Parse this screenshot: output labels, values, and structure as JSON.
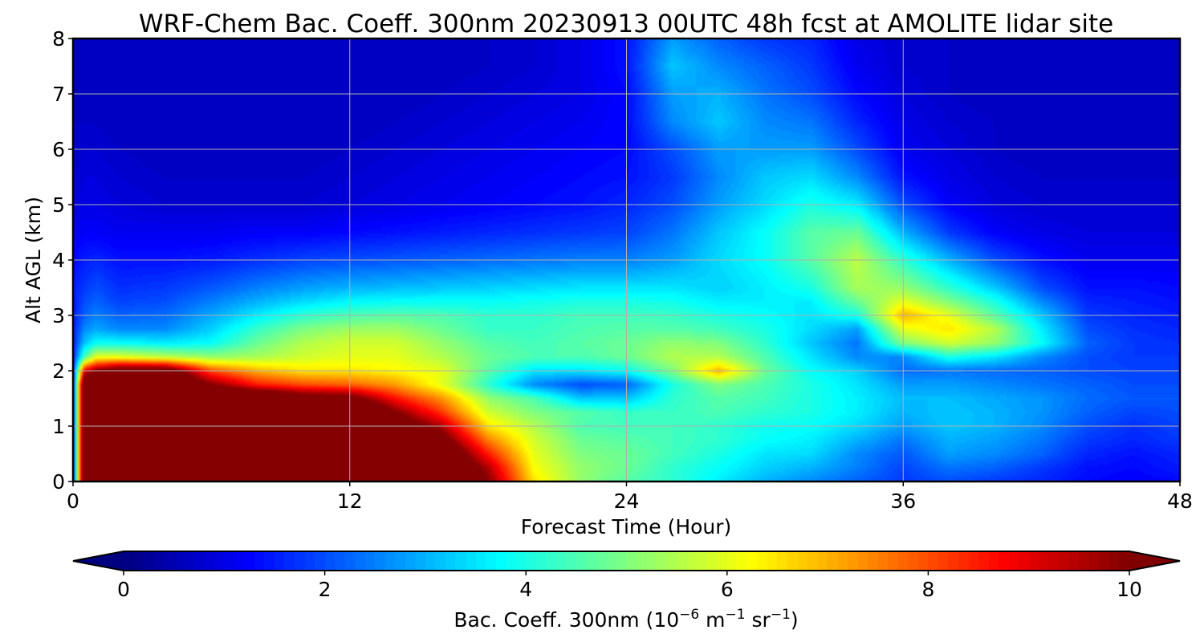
{
  "chart_data": {
    "type": "heatmap",
    "title": "WRF-Chem Bac. Coeff. 300nm  20230913 00UTC 48h fcst at AMOLITE lidar site",
    "xlabel": "Forecast Time (Hour)",
    "ylabel": "Alt AGL (km)",
    "xlim": [
      0,
      48
    ],
    "ylim": [
      0,
      8
    ],
    "xticks": [
      0,
      12,
      24,
      36,
      48
    ],
    "yticks": [
      0,
      1,
      2,
      3,
      4,
      5,
      6,
      7,
      8
    ],
    "grid": true,
    "colormap": "jet",
    "colorbar": {
      "label_main": "Bac. Coeff. 300nm  (10",
      "label_exp1": "−6",
      "label_mid": " m",
      "label_exp2": "−1",
      "label_mid2": " sr",
      "label_exp3": "−1",
      "label_end": ")",
      "range": [
        0,
        10
      ],
      "ticks": [
        0,
        2,
        4,
        6,
        8,
        10
      ],
      "extend": "both",
      "orientation": "horizontal",
      "placement": "bottom"
    },
    "x": [
      0,
      0.5,
      1,
      2,
      4,
      6,
      8,
      10,
      12,
      14,
      16,
      18,
      20,
      22,
      24,
      26,
      28,
      30,
      32,
      34,
      36,
      38,
      40,
      42,
      44,
      46,
      48
    ],
    "y": [
      0,
      0.25,
      0.5,
      0.75,
      1,
      1.25,
      1.5,
      1.75,
      2,
      2.25,
      2.5,
      2.75,
      3,
      3.25,
      3.5,
      4,
      4.5,
      5,
      5.5,
      6,
      6.5,
      7,
      7.5,
      8
    ],
    "z": [
      [
        1.5,
        12,
        12,
        12,
        12,
        12,
        12,
        12,
        12,
        12,
        12,
        10,
        6.5,
        5.2,
        4.6,
        4.2,
        3.6,
        3.0,
        2.6,
        2.2,
        1.8,
        2.0,
        1.8,
        1.6,
        1.3,
        1.2,
        1.3
      ],
      [
        1.5,
        12,
        12,
        12,
        12,
        12,
        12,
        12,
        12,
        12,
        12,
        9.5,
        6.2,
        5.2,
        4.8,
        4.2,
        3.8,
        3.3,
        3.0,
        2.5,
        1.9,
        2.4,
        2.2,
        1.8,
        1.4,
        1.3,
        1.5
      ],
      [
        1.5,
        12,
        12,
        12,
        12,
        12,
        12,
        12,
        12,
        12,
        11.5,
        8.5,
        6.0,
        5.0,
        4.8,
        4.4,
        4.0,
        3.5,
        3.4,
        2.6,
        2.1,
        2.8,
        2.6,
        2.2,
        1.6,
        1.4,
        1.6
      ],
      [
        1.5,
        12,
        12,
        12,
        12,
        12,
        12,
        12,
        12,
        12,
        10.5,
        7.5,
        5.8,
        4.8,
        4.6,
        4.4,
        4.2,
        3.8,
        3.6,
        3.0,
        2.4,
        3.0,
        2.8,
        2.4,
        1.8,
        1.6,
        1.8
      ],
      [
        1.5,
        12,
        12,
        12,
        12,
        12,
        12,
        12,
        12,
        11,
        9.5,
        6.5,
        5.5,
        4.5,
        4.4,
        4.4,
        4.2,
        3.9,
        3.8,
        3.4,
        2.8,
        3.2,
        3.0,
        2.6,
        2.0,
        1.7,
        1.9
      ],
      [
        1.5,
        12,
        12,
        12,
        12,
        12,
        12,
        12,
        12,
        10,
        8.2,
        5.8,
        5.0,
        4.6,
        4.3,
        4.3,
        4.5,
        4.2,
        4.0,
        3.6,
        3.0,
        3.2,
        3.0,
        2.7,
        2.2,
        1.9,
        2.0
      ],
      [
        1.5,
        12,
        12,
        12,
        12,
        12,
        12,
        10.8,
        10.5,
        8.6,
        7.3,
        5.2,
        4.5,
        3.2,
        3.2,
        4.2,
        4.6,
        4.4,
        4.0,
        3.6,
        3.1,
        3.1,
        2.9,
        2.7,
        2.3,
        2.1,
        2.1
      ],
      [
        1.5,
        12,
        12,
        12,
        12,
        10,
        8.5,
        8.0,
        7.8,
        7.2,
        6.0,
        4.2,
        2.6,
        2.0,
        2.2,
        4.0,
        5.0,
        4.5,
        4.0,
        3.5,
        2.8,
        2.8,
        2.6,
        2.4,
        2.2,
        2.0,
        2.0
      ],
      [
        1.5,
        9,
        10,
        11,
        11,
        8.0,
        7.0,
        6.5,
        6.5,
        6.3,
        6.0,
        4.6,
        3.5,
        3.5,
        3.8,
        5.0,
        7.0,
        4.8,
        3.8,
        3.3,
        2.3,
        2.4,
        2.3,
        2.2,
        2.0,
        1.9,
        1.9
      ],
      [
        1.5,
        4.5,
        6,
        6.0,
        5.6,
        5.2,
        5.4,
        5.8,
        6.0,
        6.0,
        5.5,
        4.8,
        4.5,
        4.5,
        4.8,
        5.5,
        5.5,
        4.5,
        3.5,
        2.6,
        2.6,
        4.0,
        3.5,
        2.6,
        2.0,
        1.8,
        1.8
      ],
      [
        1.5,
        3.2,
        3.8,
        3.8,
        3.6,
        3.8,
        4.8,
        5.5,
        5.8,
        5.8,
        5.2,
        4.6,
        4.4,
        4.6,
        4.8,
        5.2,
        5.0,
        4.2,
        3.2,
        2.4,
        5.0,
        5.8,
        5.2,
        3.8,
        2.2,
        1.8,
        1.7
      ],
      [
        1.5,
        2.6,
        2.9,
        2.6,
        2.6,
        3.3,
        4.3,
        5.0,
        5.3,
        5.3,
        4.8,
        4.3,
        4.3,
        4.5,
        4.6,
        4.6,
        4.4,
        4.0,
        3.4,
        2.8,
        6.0,
        6.5,
        5.5,
        3.6,
        2.0,
        1.7,
        1.6
      ],
      [
        1.5,
        2.2,
        2.5,
        2.2,
        2.3,
        2.9,
        3.6,
        4.2,
        4.5,
        4.6,
        4.5,
        4.2,
        4.2,
        4.4,
        4.4,
        4.3,
        4.0,
        3.8,
        3.5,
        4.0,
        7.0,
        6.0,
        4.6,
        3.2,
        1.8,
        1.6,
        1.5
      ],
      [
        1.5,
        2.0,
        2.2,
        1.9,
        2.0,
        2.5,
        3.0,
        3.4,
        3.7,
        3.8,
        3.8,
        3.8,
        3.9,
        4.0,
        4.0,
        3.9,
        3.6,
        3.6,
        3.6,
        4.8,
        6.0,
        5.0,
        4.0,
        2.6,
        1.6,
        1.5,
        1.4
      ],
      [
        1.5,
        1.8,
        2.0,
        1.7,
        1.8,
        2.1,
        2.5,
        2.8,
        3.0,
        3.1,
        3.2,
        3.3,
        3.4,
        3.5,
        3.5,
        3.5,
        3.3,
        3.6,
        4.0,
        5.4,
        5.2,
        4.2,
        3.2,
        2.0,
        1.4,
        1.4,
        1.3
      ],
      [
        1.3,
        1.5,
        1.6,
        1.4,
        1.4,
        1.5,
        1.7,
        1.9,
        2.0,
        2.1,
        2.2,
        2.3,
        2.4,
        2.5,
        2.5,
        2.8,
        3.4,
        3.8,
        4.6,
        5.6,
        4.2,
        3.0,
        2.0,
        1.4,
        1.1,
        1.1,
        1.1
      ],
      [
        1.1,
        1.2,
        1.2,
        1.1,
        1.1,
        1.1,
        1.2,
        1.2,
        1.3,
        1.4,
        1.5,
        1.6,
        1.7,
        1.8,
        1.9,
        2.4,
        3.2,
        3.8,
        4.6,
        4.8,
        3.0,
        1.8,
        1.2,
        1.0,
        0.9,
        0.9,
        0.9
      ],
      [
        0.9,
        1.0,
        1.0,
        0.9,
        0.8,
        0.8,
        0.8,
        0.8,
        0.9,
        1.0,
        1.1,
        1.2,
        1.3,
        1.4,
        1.6,
        2.0,
        2.8,
        3.4,
        4.0,
        3.6,
        2.0,
        1.2,
        0.9,
        0.8,
        0.8,
        0.8,
        0.8
      ],
      [
        0.8,
        0.9,
        0.9,
        0.8,
        0.7,
        0.7,
        0.7,
        0.7,
        0.8,
        0.9,
        1.0,
        1.1,
        1.2,
        1.3,
        1.4,
        1.8,
        2.6,
        3.2,
        3.4,
        2.6,
        1.4,
        1.0,
        0.8,
        0.7,
        0.7,
        0.7,
        0.7
      ],
      [
        0.7,
        0.8,
        0.8,
        0.7,
        0.6,
        0.6,
        0.6,
        0.6,
        0.7,
        0.8,
        0.9,
        1.0,
        1.1,
        1.2,
        1.3,
        2.0,
        2.8,
        2.8,
        2.8,
        2.0,
        1.1,
        0.9,
        0.7,
        0.6,
        0.6,
        0.6,
        0.6
      ],
      [
        0.7,
        0.7,
        0.7,
        0.6,
        0.6,
        0.6,
        0.6,
        0.6,
        0.6,
        0.7,
        0.8,
        0.9,
        1.0,
        1.1,
        1.3,
        2.6,
        3.2,
        2.6,
        2.4,
        1.6,
        1.0,
        0.8,
        0.7,
        0.6,
        0.6,
        0.6,
        0.6
      ],
      [
        0.6,
        0.7,
        0.7,
        0.6,
        0.6,
        0.6,
        0.6,
        0.6,
        0.6,
        0.6,
        0.7,
        0.8,
        0.9,
        1.0,
        1.3,
        2.8,
        3.0,
        2.4,
        2.0,
        1.3,
        0.9,
        0.7,
        0.6,
        0.6,
        0.6,
        0.6,
        0.6
      ],
      [
        0.6,
        0.6,
        0.6,
        0.6,
        0.6,
        0.6,
        0.6,
        0.6,
        0.6,
        0.6,
        0.6,
        0.7,
        0.8,
        1.0,
        1.4,
        3.2,
        2.6,
        2.2,
        1.8,
        1.1,
        0.8,
        0.7,
        0.6,
        0.6,
        0.6,
        0.6,
        0.6
      ],
      [
        0.6,
        0.6,
        0.6,
        0.6,
        0.6,
        0.6,
        0.6,
        0.6,
        0.6,
        0.6,
        0.6,
        0.7,
        0.8,
        1.0,
        1.4,
        2.8,
        2.2,
        1.8,
        1.6,
        1.0,
        0.8,
        0.7,
        0.6,
        0.6,
        0.6,
        0.6,
        0.6
      ]
    ]
  }
}
